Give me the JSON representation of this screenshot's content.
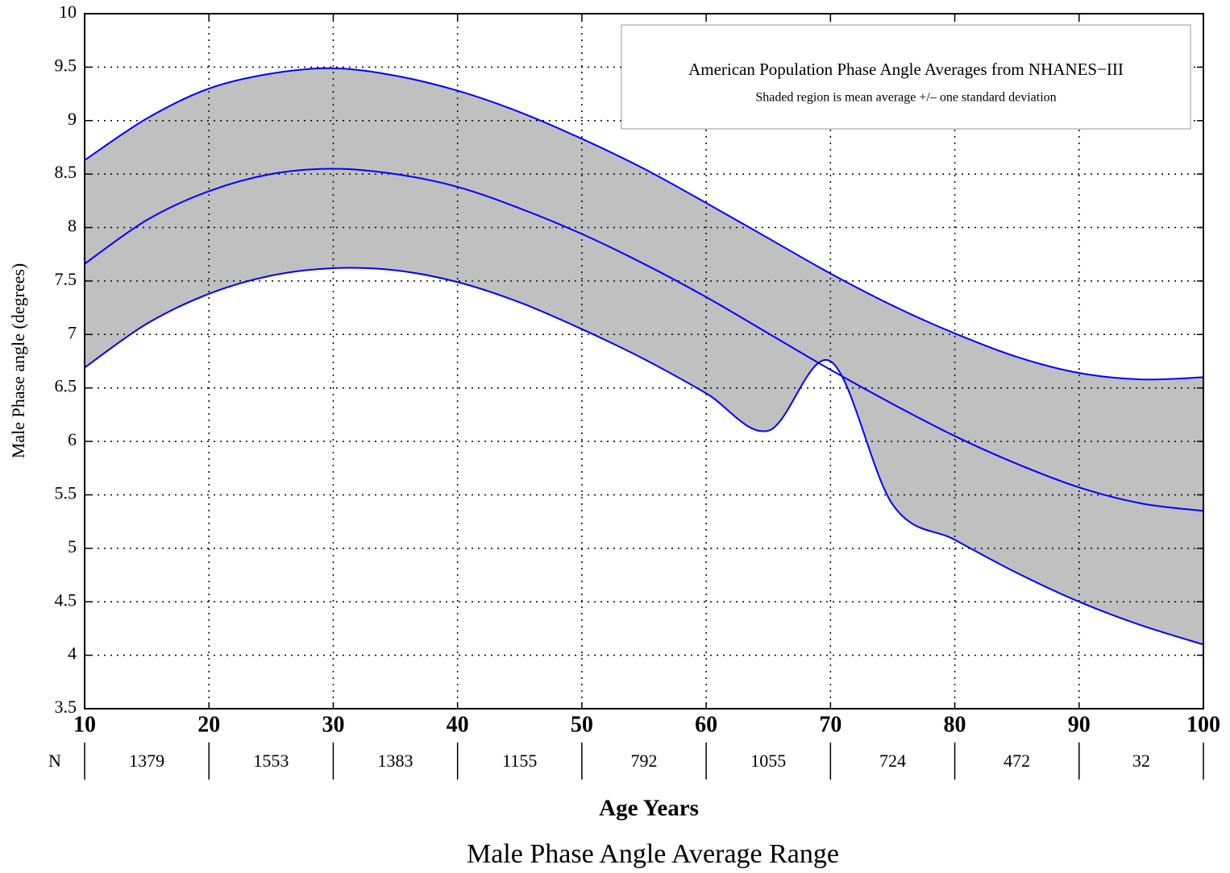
{
  "chart_data": {
    "type": "line",
    "title": "Male Phase Angle Average Range",
    "xlabel": "Age Years",
    "ylabel": "Male Phase angle (degrees)",
    "annotation_title": "American Population Phase Angle Averages from NHANES−III",
    "annotation_subtitle": "Shaded region is mean average +/– one standard deviation",
    "x": [
      10,
      15,
      20,
      25,
      30,
      35,
      40,
      45,
      50,
      55,
      60,
      65,
      70,
      75,
      80,
      85,
      90,
      95,
      100
    ],
    "series": [
      {
        "color": "#0000ff",
        "values": [
          8.63,
          9.02,
          9.3,
          9.44,
          9.49,
          9.42,
          9.28,
          9.08,
          8.83,
          8.55,
          8.23,
          7.9,
          7.57,
          7.27,
          7.01,
          6.79,
          6.64,
          6.58,
          6.6
        ]
      },
      {
        "color": "#0000ff",
        "values": [
          7.66,
          8.07,
          8.34,
          8.5,
          8.55,
          8.5,
          8.38,
          8.18,
          7.94,
          7.66,
          7.35,
          7.01,
          6.67,
          6.35,
          6.05,
          5.79,
          5.57,
          5.42,
          5.35
        ]
      },
      {
        "color": "#0000ff",
        "values": [
          6.69,
          7.1,
          7.38,
          7.55,
          7.62,
          7.6,
          7.49,
          7.3,
          7.05,
          6.77,
          6.45,
          6.1,
          6.75,
          5.41,
          5.08,
          4.77,
          4.5,
          4.28,
          4.1
        ]
      }
    ],
    "band_color": "#c0c0c0",
    "xlim": [
      10,
      100
    ],
    "xticks": [
      10,
      20,
      30,
      40,
      50,
      60,
      70,
      80,
      90,
      100
    ],
    "ylim": [
      3.5,
      10
    ],
    "yticks": [
      3.5,
      4,
      4.5,
      5,
      5.5,
      6,
      6.5,
      7,
      7.5,
      8,
      8.5,
      9,
      9.5,
      10
    ],
    "grid": true,
    "n_label": "N",
    "n_counts": [
      1379,
      1553,
      1383,
      1155,
      792,
      1055,
      724,
      472,
      32
    ]
  }
}
